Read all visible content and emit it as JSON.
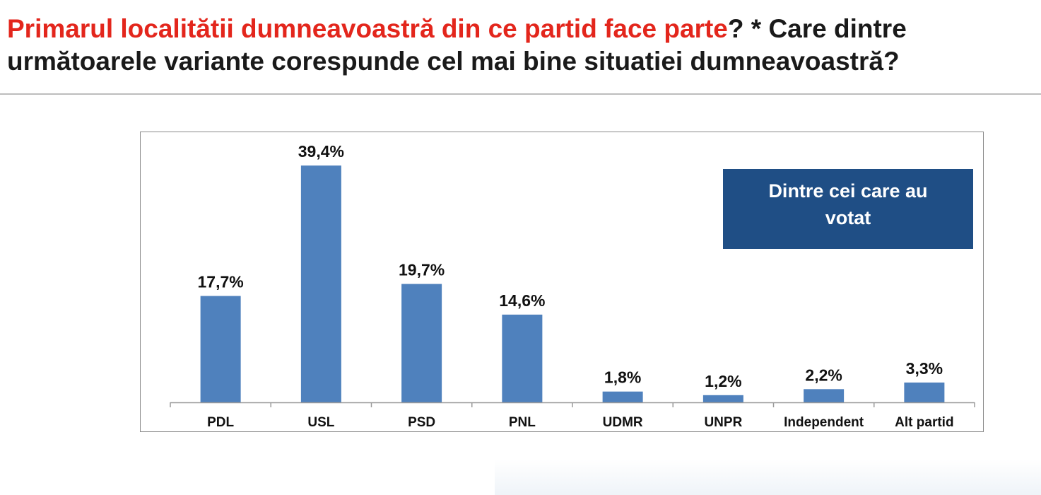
{
  "header": {
    "title_red": "Primarul localitătii dumneavoastră din ce partid face parte",
    "title_rest": "? * Care dintre următoarele variante corespunde cel mai bine situatiei dumneavoastră?"
  },
  "note": {
    "text": "Dintre cei care au votat"
  },
  "colors": {
    "bar": "#4f81bd",
    "note_bg": "#1f4e85",
    "title_red": "#e3261c"
  },
  "chart_data": {
    "type": "bar",
    "categories": [
      "PDL",
      "USL",
      "PSD",
      "PNL",
      "UDMR",
      "UNPR",
      "Independent",
      "Alt partid"
    ],
    "values": [
      17.7,
      39.4,
      19.7,
      14.6,
      1.8,
      1.2,
      2.2,
      3.3
    ],
    "value_labels": [
      "17,7%",
      "39,4%",
      "19,7%",
      "14,6%",
      "1,8%",
      "1,2%",
      "2,2%",
      "3,3%"
    ],
    "title": "",
    "xlabel": "",
    "ylabel": "",
    "ylim": [
      0,
      42
    ],
    "grid": false,
    "legend": "none"
  }
}
